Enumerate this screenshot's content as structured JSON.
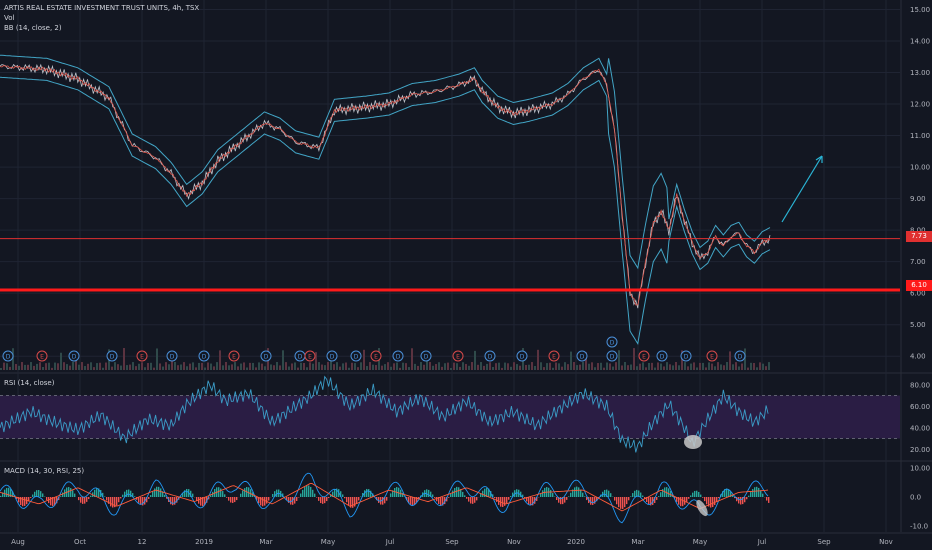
{
  "header": {
    "title": "ARTIS REAL ESTATE INVESTMENT TRUST UNITS, 4h, TSX",
    "vol_label": "Vol",
    "bb_label": "BB (14, close, 2)",
    "rsi_label": "RSI (14, close)",
    "macd_label": "MACD (14, 30, RSI, 25)"
  },
  "colors": {
    "background": "#131722",
    "grid": "#1f2433",
    "price_line": "#c0c4cc",
    "bb_band": "#42a5c6",
    "bb_basis": "#e05a4f",
    "support_line": "#ff1a1a",
    "resistance_line": "#e03030",
    "rsi_line": "#3b9cc7",
    "rsi_fill": "#2a1d44",
    "macd_line": "#2196f3",
    "signal_line": "#ff5b3a",
    "hist_up": "#26a69a",
    "hist_down": "#ef5350",
    "arrow": "#2ab5d6",
    "earnings_badge": "#d84a4a",
    "dividend_badge": "#4a8fd8"
  },
  "chart_data": [
    {
      "type": "line",
      "title": "ARTIS REAL ESTATE INVESTMENT TRUST UNITS, 4h, TSX",
      "x_labels": [
        "Aug",
        "Oct",
        "12",
        "2019",
        "Mar",
        "May",
        "Jul",
        "Sep",
        "Nov",
        "2020",
        "Mar",
        "May",
        "Jul",
        "Sep",
        "Nov"
      ],
      "y_ticks": [
        "15.00",
        "14.00",
        "13.00",
        "12.00",
        "11.00",
        "10.00",
        "9.00",
        "8.00",
        "7.00",
        "6.00",
        "5.00",
        "4.00"
      ],
      "ylim": [
        3.5,
        15.3
      ],
      "current_price": "7.73",
      "support_level": "6.10",
      "series": [
        {
          "values": [
            [
              0,
              13.2
            ],
            [
              6,
              13.1
            ],
            [
              10,
              12.8
            ],
            [
              14,
              12.2
            ],
            [
              17,
              10.7
            ],
            [
              20,
              10.3
            ],
            [
              22,
              9.8
            ],
            [
              24,
              9.1
            ],
            [
              26,
              9.5
            ],
            [
              28,
              10.2
            ],
            [
              31,
              10.8
            ],
            [
              34,
              11.4
            ],
            [
              36,
              11.2
            ],
            [
              38,
              10.8
            ],
            [
              41,
              10.6
            ],
            [
              43,
              11.8
            ],
            [
              47,
              11.9
            ],
            [
              50,
              12.0
            ],
            [
              53,
              12.3
            ],
            [
              56,
              12.4
            ],
            [
              59,
              12.6
            ],
            [
              61,
              12.8
            ],
            [
              62,
              12.4
            ],
            [
              64,
              11.9
            ],
            [
              66,
              11.7
            ],
            [
              68,
              11.8
            ],
            [
              71,
              12.0
            ],
            [
              73,
              12.3
            ],
            [
              75,
              12.8
            ],
            [
              77,
              13.1
            ],
            [
              78,
              12.6
            ],
            [
              79,
              11.2
            ],
            [
              80,
              8.5
            ],
            [
              81,
              6.0
            ],
            [
              82,
              5.6
            ],
            [
              83,
              7.0
            ],
            [
              84,
              8.2
            ],
            [
              85,
              8.6
            ],
            [
              86,
              8.0
            ],
            [
              87,
              9.1
            ],
            [
              88,
              8.3
            ],
            [
              89,
              7.6
            ],
            [
              90,
              7.1
            ],
            [
              91,
              7.3
            ],
            [
              92,
              7.8
            ],
            [
              93,
              7.5
            ],
            [
              94,
              7.8
            ],
            [
              95,
              7.9
            ],
            [
              96,
              7.5
            ],
            [
              97,
              7.3
            ],
            [
              98,
              7.6
            ],
            [
              99,
              7.73
            ]
          ]
        }
      ],
      "event_badges": [
        "E",
        "D"
      ]
    },
    {
      "type": "line",
      "title": "RSI (14, close)",
      "y_ticks": [
        "80.00",
        "60.00",
        "40.00",
        "20.00"
      ],
      "ylim": [
        10,
        90
      ],
      "band": [
        30,
        70
      ],
      "series": [
        {
          "values": [
            [
              0,
              40
            ],
            [
              4,
              55
            ],
            [
              7,
              45
            ],
            [
              10,
              38
            ],
            [
              13,
              52
            ],
            [
              16,
              30
            ],
            [
              19,
              48
            ],
            [
              22,
              42
            ],
            [
              24,
              62
            ],
            [
              27,
              80
            ],
            [
              29,
              65
            ],
            [
              32,
              72
            ],
            [
              35,
              45
            ],
            [
              38,
              60
            ],
            [
              40,
              70
            ],
            [
              42,
              85
            ],
            [
              45,
              60
            ],
            [
              48,
              75
            ],
            [
              51,
              55
            ],
            [
              54,
              68
            ],
            [
              57,
              50
            ],
            [
              60,
              65
            ],
            [
              63,
              45
            ],
            [
              66,
              55
            ],
            [
              69,
              42
            ],
            [
              72,
              58
            ],
            [
              75,
              72
            ],
            [
              78,
              60
            ],
            [
              80,
              28
            ],
            [
              82,
              22
            ],
            [
              84,
              45
            ],
            [
              86,
              62
            ],
            [
              88,
              40
            ],
            [
              89,
              25
            ],
            [
              91,
              48
            ],
            [
              93,
              70
            ],
            [
              95,
              55
            ],
            [
              97,
              45
            ],
            [
              99,
              58
            ]
          ]
        }
      ]
    },
    {
      "type": "bar",
      "title": "MACD (14, 30, RSI, 25)",
      "y_ticks": [
        "10.00",
        "0.0",
        "-10.0"
      ],
      "ylim": [
        -12,
        12
      ],
      "series": [
        {
          "name": "",
          "values": [
            [
              0,
              2
            ],
            [
              5,
              -3
            ],
            [
              10,
              4
            ],
            [
              15,
              -4
            ],
            [
              20,
              3
            ],
            [
              25,
              -2
            ],
            [
              30,
              5
            ],
            [
              35,
              -3
            ],
            [
              40,
              6
            ],
            [
              45,
              -4
            ],
            [
              50,
              3
            ],
            [
              55,
              -2
            ],
            [
              60,
              4
            ],
            [
              65,
              -3
            ],
            [
              70,
              2
            ],
            [
              75,
              3
            ],
            [
              80,
              -6
            ],
            [
              85,
              3
            ],
            [
              90,
              -5
            ],
            [
              95,
              2
            ],
            [
              99,
              3
            ]
          ]
        }
      ]
    }
  ]
}
